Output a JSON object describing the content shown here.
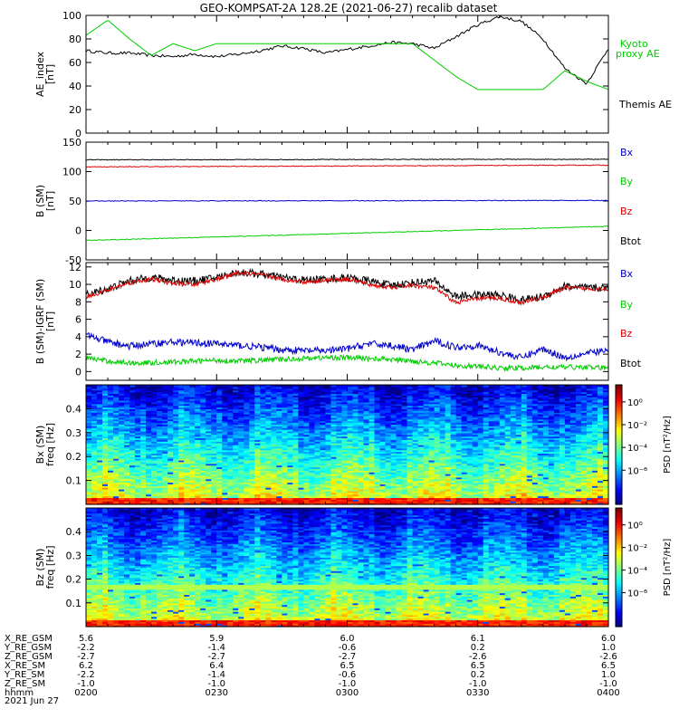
{
  "title": "GEO-KOMPSAT-2A 128.2E (2021-06-27) recalib dataset",
  "chart_data": [
    {
      "type": "line",
      "ylabel": "AE_index\n[nT]",
      "ylim": [
        0,
        100
      ],
      "yticks": [
        0,
        20,
        40,
        60,
        80,
        100
      ],
      "legend": [
        "Kyoto\nproxy AE",
        "Themis AE"
      ],
      "legend_placement": "right",
      "x_minutes": [
        0,
        5,
        10,
        15,
        20,
        25,
        30,
        35,
        40,
        45,
        50,
        55,
        60,
        65,
        70,
        75,
        80,
        85,
        90,
        95,
        100,
        105,
        110,
        115,
        120
      ],
      "series": [
        {
          "name": "Themis AE",
          "color": "#000000",
          "values": [
            70,
            68,
            68,
            66,
            65,
            67,
            65,
            67,
            70,
            74,
            72,
            68,
            71,
            74,
            77,
            76,
            72,
            82,
            92,
            99,
            95,
            80,
            55,
            42,
            72
          ]
        },
        {
          "name": "Kyoto proxy AE",
          "color": "#00cc00",
          "values": [
            83,
            96,
            80,
            66,
            76,
            70,
            76,
            76,
            76,
            76,
            76,
            76,
            76,
            76,
            76,
            76,
            62,
            48,
            37,
            37,
            37,
            37,
            53,
            44,
            37
          ]
        }
      ]
    },
    {
      "type": "line",
      "ylabel": "B (SM)\n[nT]",
      "ylim": [
        -50,
        150
      ],
      "yticks": [
        -50,
        0,
        50,
        100,
        150
      ],
      "legend": [
        "Bx",
        "By",
        "Bz",
        "Btot"
      ],
      "legend_placement": "right",
      "series": [
        {
          "name": "Btot",
          "color": "#000000",
          "start": 120,
          "end": 121
        },
        {
          "name": "Bz",
          "color": "#dd0000",
          "start": 108,
          "end": 111
        },
        {
          "name": "Bx",
          "color": "#0000cc",
          "start": 50,
          "end": 51
        },
        {
          "name": "By",
          "color": "#00cc00",
          "start": -17,
          "end": 7
        }
      ]
    },
    {
      "type": "line",
      "ylabel": "B (SM)-IGRF (SM)\n[nT]",
      "ylim": [
        -1,
        12.5
      ],
      "yticks": [
        0,
        2,
        4,
        6,
        8,
        10,
        12
      ],
      "legend": [
        "Bx",
        "By",
        "Bz",
        "Btot"
      ],
      "legend_placement": "right",
      "x_minutes": [
        0,
        5,
        10,
        15,
        20,
        25,
        30,
        35,
        40,
        45,
        50,
        55,
        60,
        65,
        70,
        75,
        80,
        85,
        90,
        95,
        100,
        105,
        110,
        115,
        120
      ],
      "series": [
        {
          "name": "Btot",
          "color": "#000000",
          "values": [
            8.8,
            9.5,
            10.4,
            10.8,
            10.5,
            10.4,
            10.8,
            11.4,
            11.2,
            10.8,
            10.5,
            10.6,
            10.8,
            10.4,
            9.9,
            10.2,
            10.4,
            8.6,
            8.8,
            8.8,
            8.2,
            8.6,
            9.8,
            9.6,
            9.6
          ]
        },
        {
          "name": "Bz",
          "color": "#dd0000",
          "values": [
            8.6,
            9.3,
            10.2,
            10.6,
            10.1,
            10.0,
            10.6,
            11.3,
            11.1,
            10.6,
            10.3,
            10.5,
            10.6,
            10.0,
            9.6,
            9.9,
            9.6,
            7.9,
            8.4,
            8.4,
            7.9,
            8.5,
            9.6,
            9.5,
            9.5
          ]
        },
        {
          "name": "Bx",
          "color": "#0000cc",
          "values": [
            4.2,
            3.4,
            2.9,
            3.2,
            3.4,
            3.3,
            3.2,
            3.0,
            2.8,
            2.5,
            2.4,
            2.4,
            2.6,
            3.2,
            3.0,
            2.5,
            3.5,
            2.8,
            3.0,
            2.2,
            1.6,
            2.6,
            1.6,
            2.1,
            2.4
          ]
        },
        {
          "name": "By",
          "color": "#00cc00",
          "values": [
            1.6,
            1.2,
            1.0,
            1.0,
            1.1,
            1.2,
            1.3,
            1.2,
            1.3,
            1.4,
            1.5,
            1.6,
            1.6,
            1.5,
            1.4,
            1.2,
            1.0,
            0.7,
            0.6,
            0.4,
            0.4,
            0.5,
            0.5,
            0.5,
            0.4
          ]
        }
      ]
    },
    {
      "type": "heatmap",
      "ylabel": "Bx (SM)\nfreq [Hz]",
      "ylim": [
        0,
        0.5
      ],
      "yticks": [
        0.1,
        0.2,
        0.3,
        0.4
      ],
      "colorbar_label": "PSD [nT²/Hz]",
      "colorbar_scale": "log",
      "colorbar_ticks": [
        "10⁰",
        "10⁻²",
        "10⁻⁴",
        "10⁻⁶"
      ],
      "colorbar_exponents": [
        0,
        -2,
        -4,
        -6
      ]
    },
    {
      "type": "heatmap",
      "ylabel": "Bz (SM)\nfreq [Hz]",
      "ylim": [
        0,
        0.5
      ],
      "yticks": [
        0.1,
        0.2,
        0.3,
        0.4
      ],
      "colorbar_label": "PSD [nT²/Hz]",
      "colorbar_scale": "log",
      "colorbar_ticks": [
        "10⁰",
        "10⁻²",
        "10⁻⁴",
        "10⁻⁶"
      ],
      "colorbar_exponents": [
        0,
        -2,
        -4,
        -6
      ]
    }
  ],
  "orbit_table": {
    "labels": [
      "X_RE_GSM",
      "Y_RE_GSM",
      "Z_RE_GSM",
      "X_RE_SM",
      "Y_RE_SM",
      "Z_RE_SM",
      "hhmm",
      "2021 Jun 27"
    ],
    "columns": [
      [
        "5.6",
        "-2.2",
        "-2.7",
        "6.2",
        "-2.2",
        "-1.0",
        "0200"
      ],
      [
        "5.9",
        "-1.4",
        "-2.7",
        "6.4",
        "-1.4",
        "-1.0",
        "0230"
      ],
      [
        "6.0",
        "-0.6",
        "-2.7",
        "6.5",
        "-0.6",
        "-1.0",
        "0300"
      ],
      [
        "6.1",
        "0.2",
        "-2.6",
        "6.5",
        "0.2",
        "-1.0",
        "0330"
      ],
      [
        "6.0",
        "1.0",
        "-2.6",
        "6.5",
        "1.0",
        "-1.0",
        "0400"
      ]
    ]
  }
}
